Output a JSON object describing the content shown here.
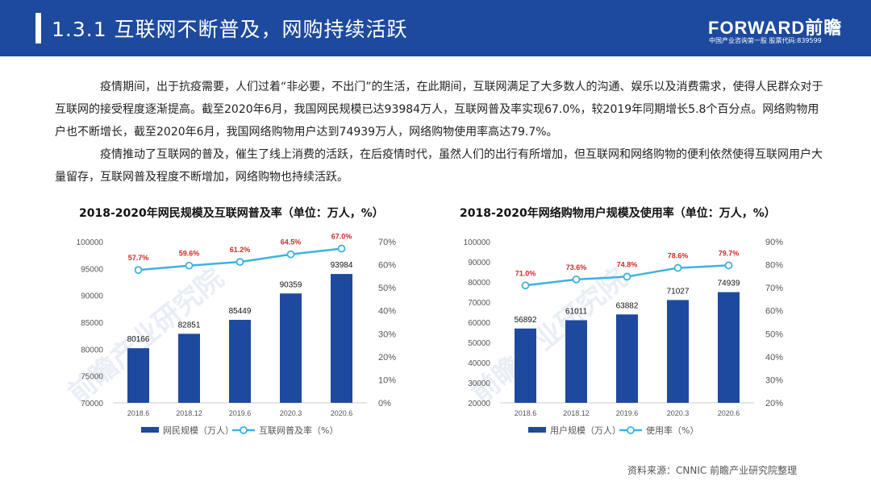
{
  "header": {
    "title": "1.3.1 互联网不断普及，网购持续活跃",
    "logo": "FORWARD前瞻",
    "logo_sub": "中国产业咨询第一股 股票代码:839599"
  },
  "body": {
    "paragraph1": "疫情期间，出于抗疫需要，人们过着“非必要，不出门”的生活，在此期间，互联网满足了大多数人的沟通、娱乐以及消费需求，使得人民群众对于互联网的接受程度逐渐提高。截至2020年6月，我国网民规模已达93984万人，互联网普及率实现67.0%，较2019年同期增长5.8个百分点。网络购物用户也不断增长，截至2020年6月，我国网络购物用户达到74939万人，网络购物使用率高达79.7%。",
    "paragraph2": "疫情推动了互联网的普及，催生了线上消费的活跃，在后疫情时代，虽然人们的出行有所增加，但互联网和网络购物的便利依然使得互联网用户大量留存，互联网普及程度不断增加，网络购物也持续活跃。"
  },
  "watermark": "前瞻产业研究院",
  "source": "资料来源：CNNIC 前瞻产业研究院整理",
  "colors": {
    "header_bg": "#1d4a9e",
    "bar": "#1d4a9e",
    "line": "#3eb1e0",
    "label_red": "#d22828"
  },
  "chart_data": [
    {
      "type": "bar",
      "title": "2018-2020年网民规模及互联网普及率（单位：万人，%）",
      "categories": [
        "2018.6",
        "2018.12",
        "2019.6",
        "2020.3",
        "2020.6"
      ],
      "series": [
        {
          "name": "网民规模（万人）",
          "type": "bar",
          "axis": "left",
          "values": [
            80166,
            82851,
            85449,
            90359,
            93984
          ]
        },
        {
          "name": "互联网普及率（%）",
          "type": "line",
          "axis": "right",
          "values": [
            57.7,
            59.6,
            61.2,
            64.5,
            67.0
          ]
        }
      ],
      "value_labels": [
        "80166",
        "82851",
        "85449",
        "90359",
        "93984"
      ],
      "rate_labels": [
        "57.7%",
        "59.6%",
        "61.2%",
        "64.5%",
        "67.0%"
      ],
      "y_left": {
        "min": 70000,
        "max": 100000,
        "ticks": [
          "70000",
          "75000",
          "80000",
          "85000",
          "90000",
          "95000",
          "100000"
        ]
      },
      "y_right": {
        "min": 0,
        "max": 70,
        "ticks": [
          "0%",
          "10%",
          "20%",
          "30%",
          "40%",
          "50%",
          "60%",
          "70%"
        ]
      },
      "legend_position": "bottom"
    },
    {
      "type": "bar",
      "title": "2018-2020年网络购物用户规模及使用率（单位：万人，%）",
      "categories": [
        "2018.6",
        "2018.12",
        "2019.6",
        "2020.3",
        "2020.6"
      ],
      "series": [
        {
          "name": "用户规模（万人）",
          "type": "bar",
          "axis": "left",
          "values": [
            56892,
            61011,
            63882,
            71027,
            74939
          ]
        },
        {
          "name": "使用率（%）",
          "type": "line",
          "axis": "right",
          "values": [
            71.0,
            73.6,
            74.8,
            78.6,
            79.7
          ]
        }
      ],
      "value_labels": [
        "56892",
        "61011",
        "63882",
        "71027",
        "74939"
      ],
      "rate_labels": [
        "71.0%",
        "73.6%",
        "74.8%",
        "78.6%",
        "79.7%"
      ],
      "y_left": {
        "min": 20000,
        "max": 100000,
        "ticks": [
          "20000",
          "30000",
          "40000",
          "50000",
          "60000",
          "70000",
          "80000",
          "90000",
          "100000"
        ]
      },
      "y_right": {
        "min": 20,
        "max": 90,
        "ticks": [
          "20%",
          "30%",
          "40%",
          "50%",
          "60%",
          "70%",
          "80%",
          "90%"
        ]
      },
      "legend_position": "bottom"
    }
  ]
}
